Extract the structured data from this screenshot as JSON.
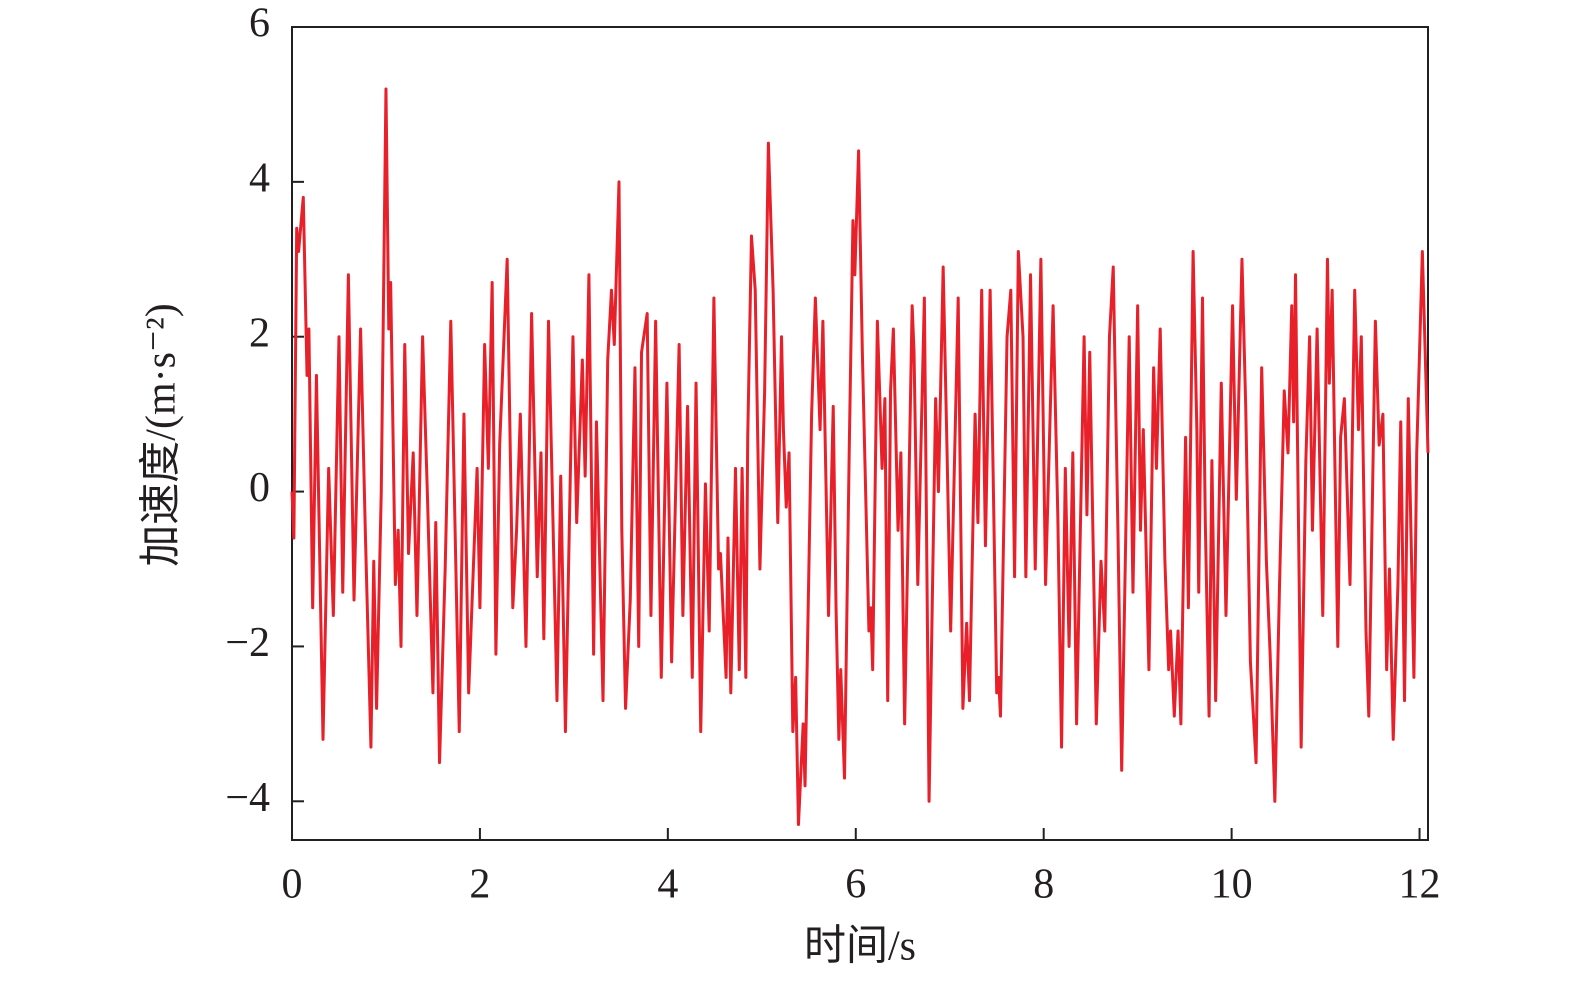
{
  "chart_data": {
    "type": "line",
    "xlabel": "时间/s",
    "ylabel": "加速度/(m·s⁻²)",
    "xlim": [
      0,
      12.09
    ],
    "ylim": [
      -4.5,
      6
    ],
    "xticks": [
      0,
      2,
      4,
      6,
      8,
      10,
      12
    ],
    "yticks": [
      6,
      4,
      2,
      0,
      {
        "value": -2,
        "label": "−2"
      },
      {
        "value": -4,
        "label": "−4"
      }
    ],
    "x": [
      0,
      0.02,
      0.05,
      0.07,
      0.12,
      0.16,
      0.18,
      0.22,
      0.26,
      0.33,
      0.39,
      0.44,
      0.5,
      0.54,
      0.6,
      0.66,
      0.73,
      0.78,
      0.84,
      0.87,
      0.9,
      0.95,
      1.0,
      1.03,
      1.05,
      1.1,
      1.13,
      1.16,
      1.2,
      1.24,
      1.29,
      1.33,
      1.39,
      1.44,
      1.5,
      1.53,
      1.57,
      1.63,
      1.69,
      1.78,
      1.83,
      1.88,
      1.97,
      2.0,
      2.05,
      2.09,
      2.13,
      2.17,
      2.21,
      2.29,
      2.35,
      2.39,
      2.43,
      2.49,
      2.55,
      2.61,
      2.65,
      2.68,
      2.73,
      2.82,
      2.86,
      2.91,
      2.99,
      3.03,
      3.09,
      3.12,
      3.16,
      3.21,
      3.24,
      3.31,
      3.36,
      3.4,
      3.43,
      3.48,
      3.51,
      3.55,
      3.6,
      3.65,
      3.69,
      3.72,
      3.78,
      3.82,
      3.87,
      3.93,
      3.99,
      4.04,
      4.12,
      4.16,
      4.21,
      4.26,
      4.3,
      4.35,
      4.4,
      4.44,
      4.49,
      4.54,
      4.56,
      4.62,
      4.64,
      4.67,
      4.72,
      4.76,
      4.79,
      4.83,
      4.85,
      4.89,
      4.93,
      4.98,
      5.03,
      5.07,
      5.12,
      5.17,
      5.21,
      5.23,
      5.26,
      5.29,
      5.33,
      5.36,
      5.39,
      5.44,
      5.46,
      5.53,
      5.57,
      5.62,
      5.65,
      5.71,
      5.76,
      5.79,
      5.82,
      5.84,
      5.88,
      5.93,
      5.97,
      5.99,
      6.03,
      6.07,
      6.14,
      6.16,
      6.18,
      6.23,
      6.28,
      6.31,
      6.34,
      6.37,
      6.4,
      6.45,
      6.48,
      6.52,
      6.6,
      6.62,
      6.66,
      6.73,
      6.78,
      6.82,
      6.85,
      6.88,
      6.93,
      6.97,
      7.01,
      7.09,
      7.14,
      7.18,
      7.21,
      7.27,
      7.3,
      7.34,
      7.38,
      7.43,
      7.5,
      7.52,
      7.54,
      7.61,
      7.65,
      7.69,
      7.73,
      7.78,
      7.81,
      7.86,
      7.91,
      7.97,
      8.02,
      8.1,
      8.15,
      8.19,
      8.23,
      8.27,
      8.31,
      8.35,
      8.43,
      8.46,
      8.49,
      8.56,
      8.61,
      8.65,
      8.7,
      8.74,
      8.79,
      8.83,
      8.91,
      8.95,
      9.0,
      9.03,
      9.06,
      9.12,
      9.17,
      9.2,
      9.24,
      9.29,
      9.33,
      9.35,
      9.39,
      9.43,
      9.46,
      9.51,
      9.54,
      9.59,
      9.63,
      9.65,
      9.69,
      9.72,
      9.76,
      9.79,
      9.83,
      9.89,
      9.94,
      10.01,
      10.05,
      10.11,
      10.15,
      10.2,
      10.26,
      10.32,
      10.37,
      10.41,
      10.46,
      10.51,
      10.56,
      10.6,
      10.64,
      10.66,
      10.68,
      10.74,
      10.79,
      10.83,
      10.86,
      10.91,
      10.97,
      11.02,
      11.04,
      11.07,
      11.13,
      11.16,
      11.2,
      11.26,
      11.31,
      11.35,
      11.38,
      11.43,
      11.46,
      11.53,
      11.57,
      11.61,
      11.65,
      11.68,
      11.72,
      11.77,
      11.8,
      11.84,
      11.88,
      11.94,
      11.97,
      12.03,
      12.09
    ],
    "series": [
      {
        "color": "#e8202a",
        "values": [
          0,
          -0.6,
          3.4,
          3.1,
          3.8,
          1.5,
          2.1,
          -1.5,
          1.5,
          -3.2,
          0.3,
          -1.6,
          2.0,
          -1.3,
          2.8,
          -1.4,
          2.1,
          -0.5,
          -3.3,
          -0.9,
          -2.8,
          0,
          5.2,
          2.1,
          2.7,
          -1.2,
          -0.5,
          -2.0,
          1.9,
          -0.8,
          0.5,
          -1.6,
          2.0,
          0,
          -2.6,
          -0.4,
          -3.5,
          -1.0,
          2.2,
          -3.1,
          1.0,
          -2.6,
          0.3,
          -1.5,
          1.9,
          0.3,
          2.7,
          -2.1,
          0.6,
          3.0,
          -1.5,
          -0.5,
          1.0,
          -2.0,
          2.3,
          -1.1,
          0.5,
          -1.9,
          2.2,
          -2.7,
          0.2,
          -3.1,
          2.0,
          -0.4,
          1.7,
          0.2,
          2.8,
          -2.1,
          0.9,
          -2.7,
          1.7,
          2.6,
          1.9,
          4.0,
          -0.5,
          -2.8,
          -1.4,
          1.6,
          -2.0,
          1.8,
          2.3,
          -1.6,
          2.2,
          -2.4,
          1.4,
          -2.2,
          1.9,
          -1.6,
          1.1,
          -2.4,
          1.4,
          -3.1,
          0.1,
          -1.8,
          2.5,
          -1.0,
          -0.8,
          -2.4,
          -0.6,
          -2.6,
          0.3,
          -2.3,
          0.3,
          -2.4,
          0.7,
          3.3,
          2.6,
          -1.0,
          1.3,
          4.5,
          2.6,
          -0.4,
          2.0,
          0.8,
          -0.2,
          0.5,
          -3.1,
          -2.4,
          -4.3,
          -3.0,
          -3.8,
          1.0,
          2.5,
          0.8,
          2.2,
          -1.6,
          1.1,
          -1.5,
          -3.2,
          -2.3,
          -3.7,
          0.5,
          3.5,
          2.8,
          4.4,
          1.8,
          -1.8,
          -1.5,
          -2.3,
          2.2,
          0.3,
          1.2,
          -2.7,
          1.3,
          2.1,
          -0.5,
          0.5,
          -3.0,
          2.4,
          1.8,
          -1.2,
          2.5,
          -4.0,
          -1.0,
          1.2,
          0,
          2.9,
          0.6,
          -1.8,
          2.5,
          -2.8,
          -1.7,
          -2.7,
          1.0,
          -0.4,
          2.6,
          -0.7,
          2.6,
          -2.6,
          -2.4,
          -2.9,
          2.0,
          2.6,
          -1.1,
          3.1,
          2.0,
          -1.1,
          2.8,
          -1.0,
          3.0,
          -1.2,
          2.4,
          -0.3,
          -3.3,
          0.3,
          -2.0,
          0.5,
          -3.0,
          2.0,
          -0.3,
          1.8,
          -3.0,
          -0.9,
          -1.8,
          2.0,
          2.9,
          -0.5,
          -3.6,
          2.0,
          -1.3,
          2.4,
          -0.5,
          0.8,
          -2.3,
          1.6,
          0.3,
          2.1,
          -0.9,
          -2.3,
          -1.8,
          -2.9,
          -1.8,
          -3.0,
          0.7,
          -1.5,
          3.1,
          0.8,
          -1.3,
          2.5,
          -0.4,
          -2.9,
          0.4,
          -2.7,
          1.4,
          -1.6,
          2.4,
          -0.1,
          3.0,
          1.1,
          -2.2,
          -3.5,
          1.6,
          -0.9,
          -2.1,
          -4.0,
          -1.2,
          1.3,
          0.5,
          2.4,
          0.9,
          2.8,
          -3.3,
          0.4,
          2.0,
          -0.5,
          2.1,
          -1.6,
          3.0,
          1.4,
          2.6,
          -2.0,
          0.7,
          1.2,
          -1.2,
          2.6,
          0.8,
          2.0,
          -1.8,
          -2.9,
          2.2,
          0.6,
          1.0,
          -2.3,
          -1.0,
          -3.2,
          -1.2,
          0.9,
          -2.7,
          1.2,
          -2.4,
          0.5,
          3.1,
          0.5
        ]
      }
    ]
  }
}
